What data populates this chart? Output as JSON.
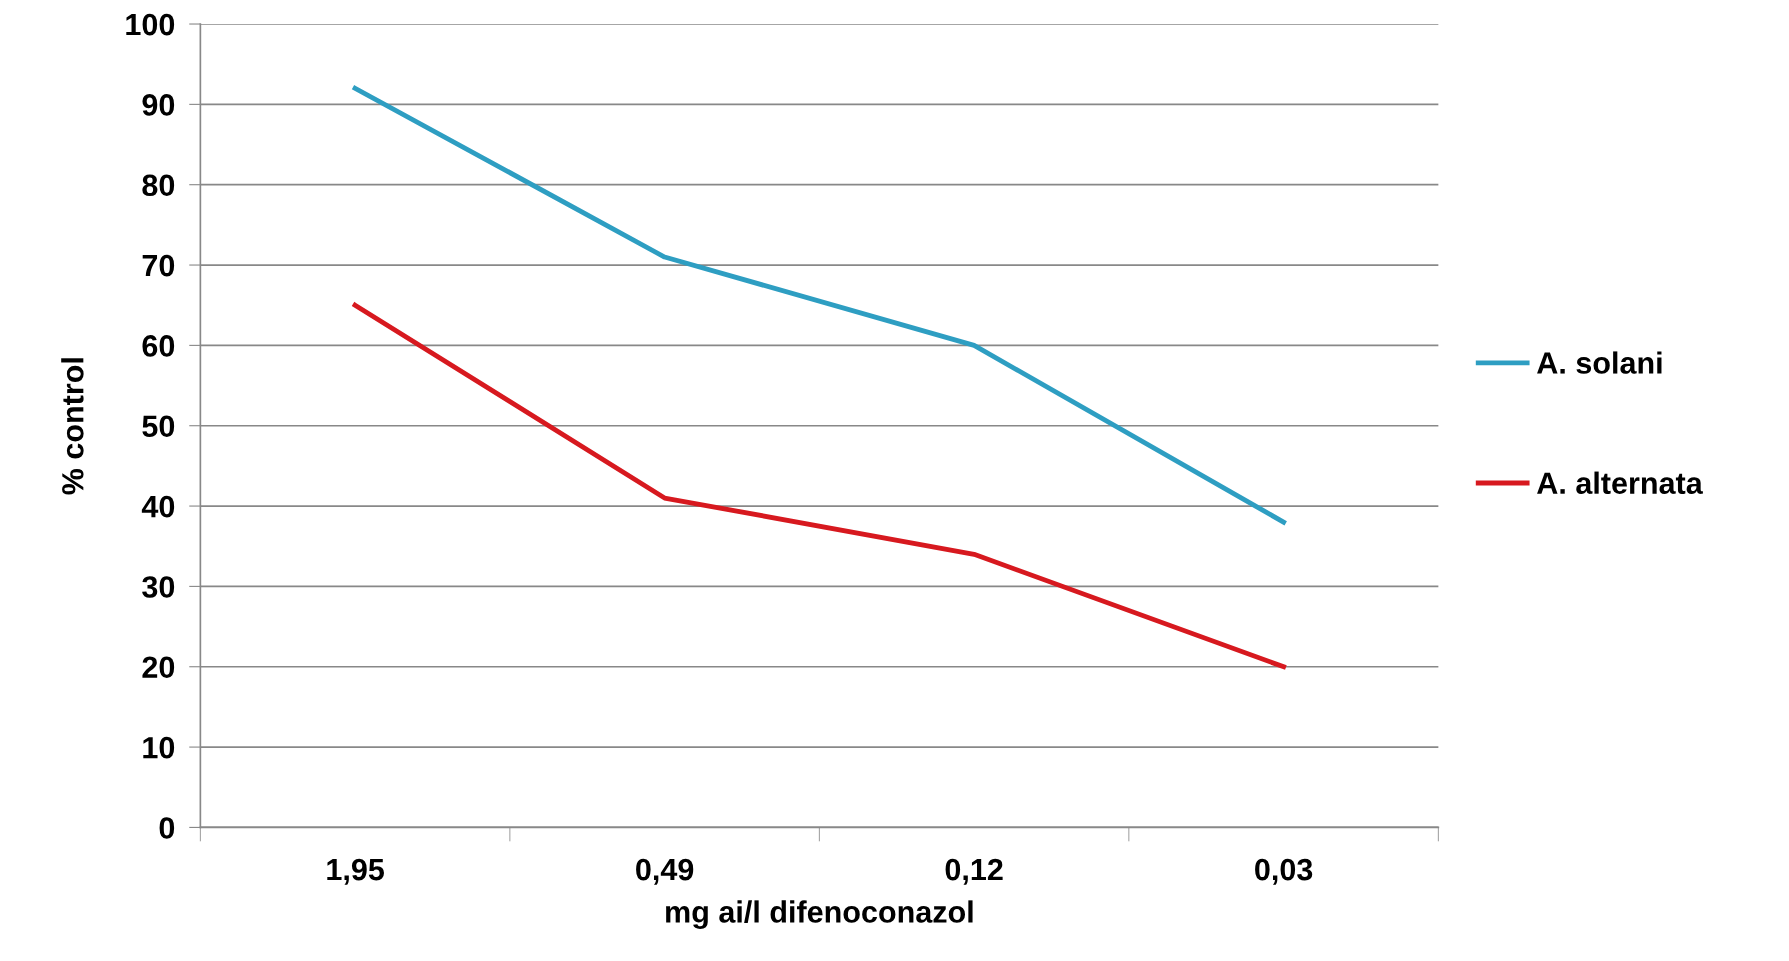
{
  "chart_data": {
    "type": "line",
    "xlabel": "mg ai/l difenoconazol",
    "ylabel": "% control",
    "categories": [
      "1,95",
      "0,49",
      "0,12",
      "0,03"
    ],
    "series": [
      {
        "name": "A. solani",
        "color": "#2e9ec2",
        "values": [
          92,
          71,
          60,
          38
        ]
      },
      {
        "name": "A. alternata",
        "color": "#d7191f",
        "values": [
          65,
          41,
          34,
          20
        ]
      }
    ],
    "ylim": [
      0,
      100
    ],
    "yticks": [
      0,
      10,
      20,
      30,
      40,
      50,
      60,
      70,
      80,
      90,
      100
    ],
    "grid": "y",
    "legend": "right",
    "marker": "none",
    "line_style": "solid"
  }
}
